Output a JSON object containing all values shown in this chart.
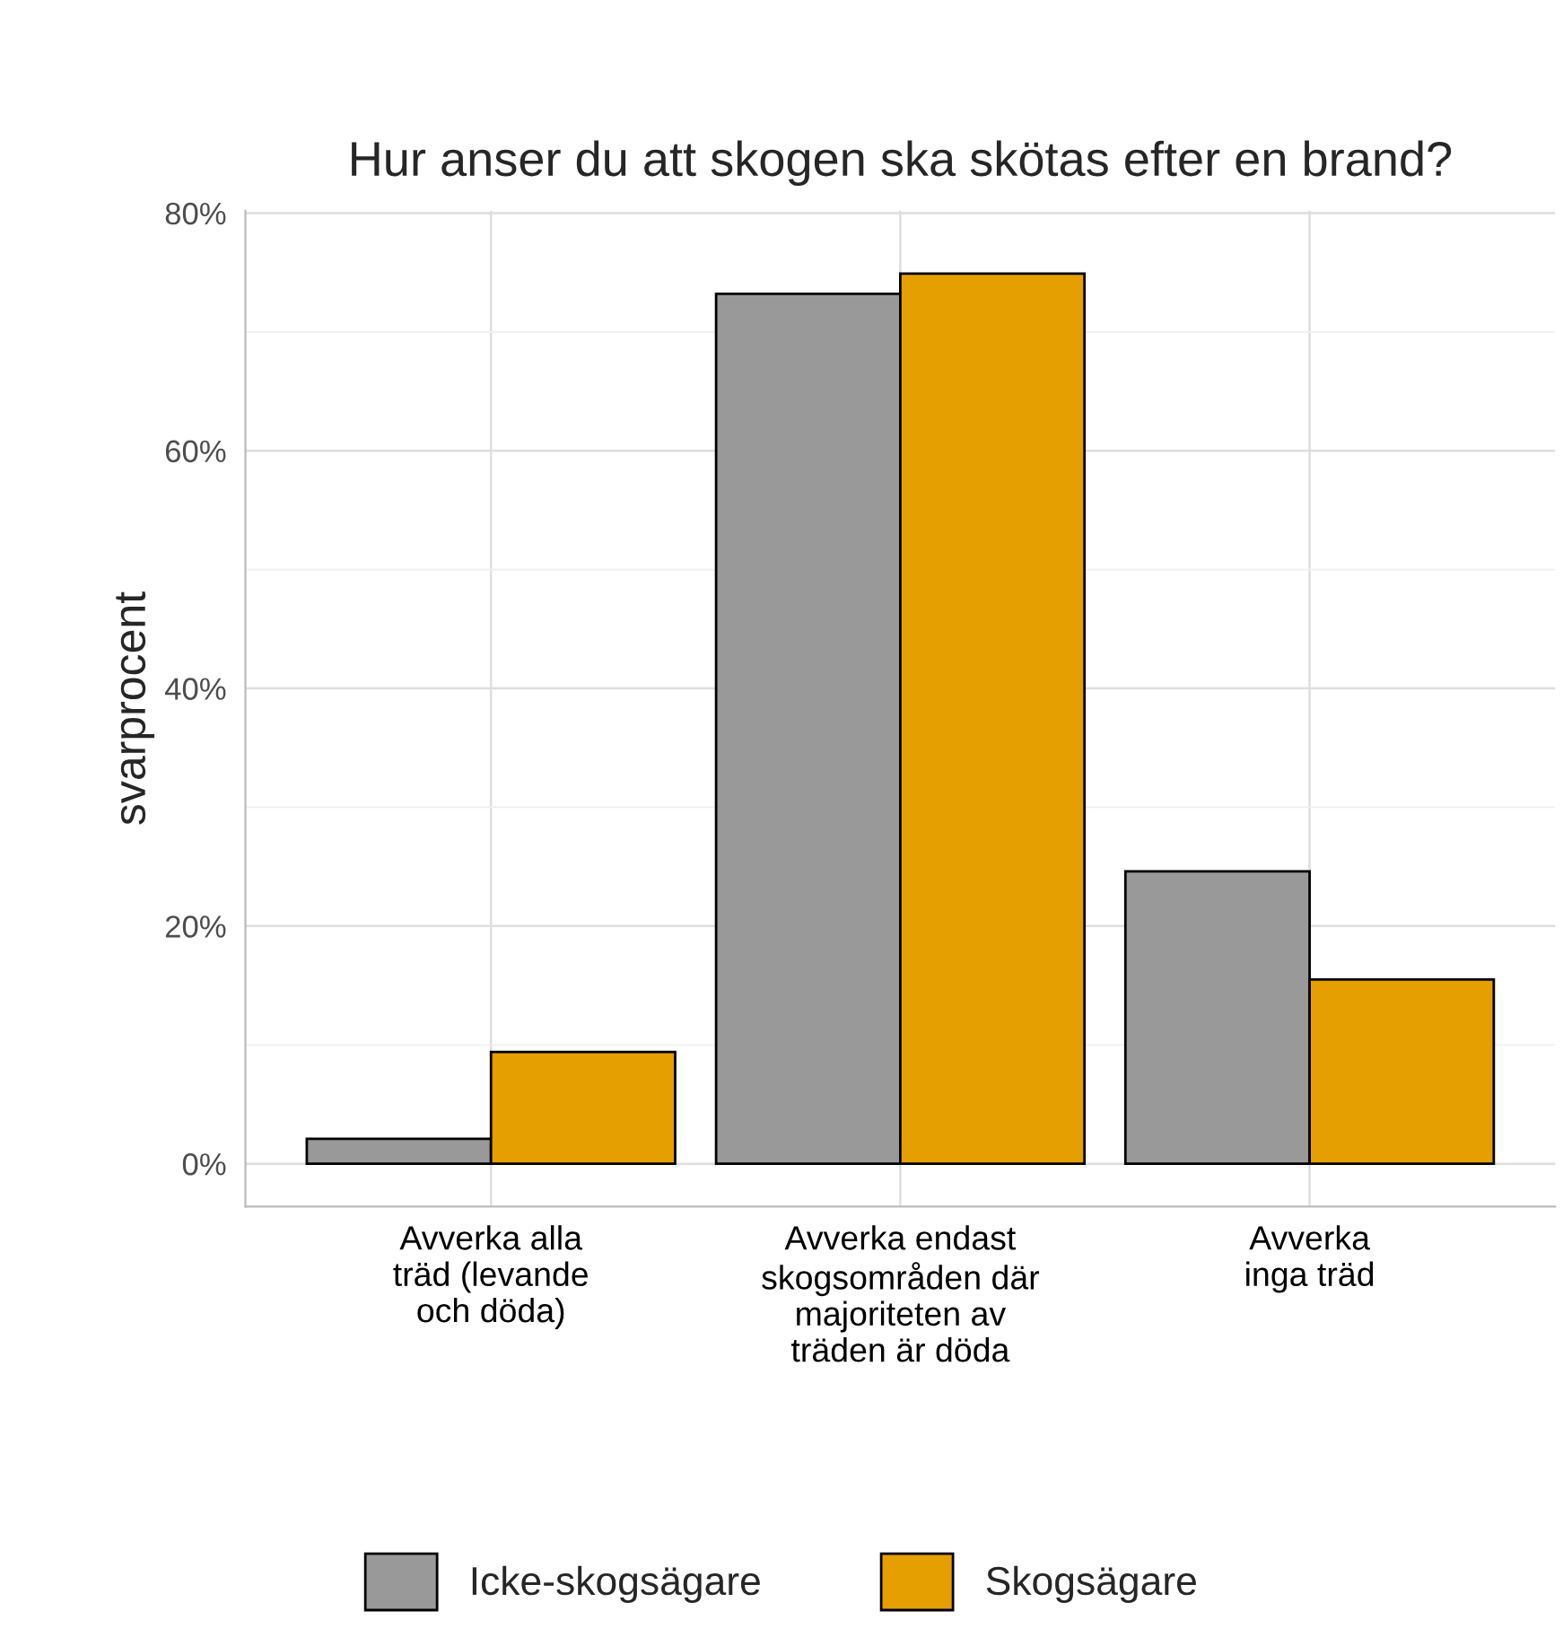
{
  "chart_data": {
    "type": "bar",
    "title": "Hur anser du att skogen ska skötas efter en brand?",
    "ylabel": "svarprocent",
    "categories": [
      "Avverka alla\nträd (levande\noch döda)",
      "Avverka endast\nskogsområden där\nmajoriteten av\nträden är döda",
      "Avverka\ninga träd"
    ],
    "series": [
      {
        "name": "Icke-skogsägare",
        "color": "#999999",
        "values": [
          2.1,
          73.2,
          24.6
        ]
      },
      {
        "name": "Skogsägare",
        "color": "#e69f00",
        "values": [
          9.4,
          74.9,
          15.5
        ]
      }
    ],
    "ylim": [
      -3.6,
      80.2
    ],
    "yticks": [
      {
        "value": 0,
        "label": "0%"
      },
      {
        "value": 20,
        "label": "20%"
      },
      {
        "value": 40,
        "label": "40%"
      },
      {
        "value": 60,
        "label": "60%"
      },
      {
        "value": 80,
        "label": "80%"
      }
    ],
    "grid": true,
    "legend": "bottom"
  }
}
